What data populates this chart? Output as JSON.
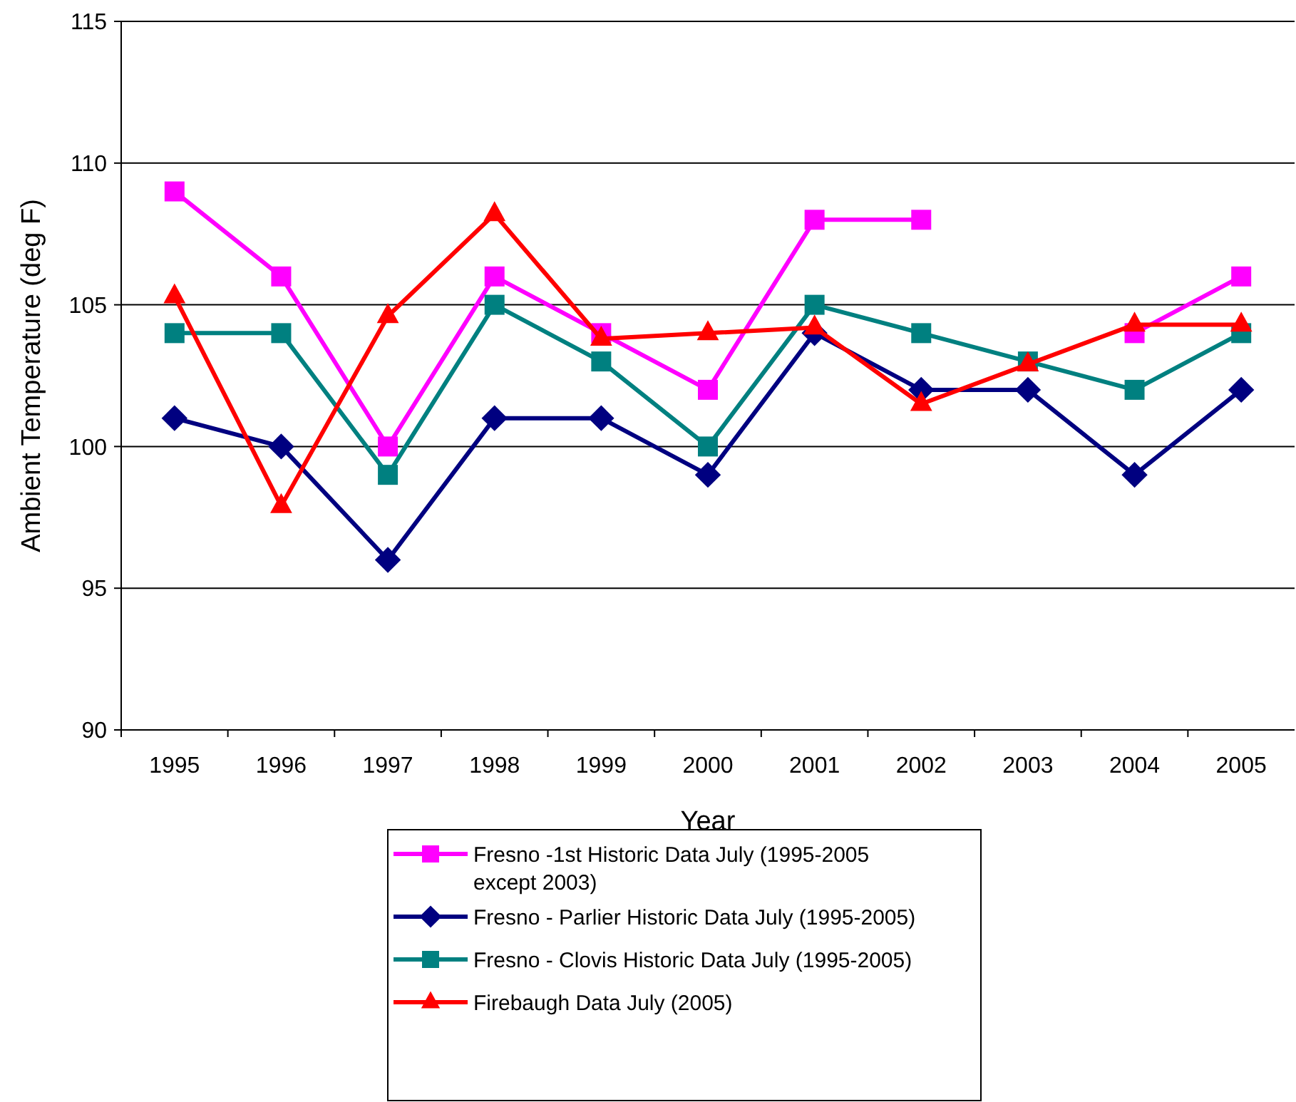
{
  "chart_data": {
    "type": "line",
    "xlabel": "Year",
    "ylabel": "Ambient Temperature (deg F)",
    "categories": [
      "1995",
      "1996",
      "1997",
      "1998",
      "1999",
      "2000",
      "2001",
      "2002",
      "2003",
      "2004",
      "2005"
    ],
    "ylim": [
      90,
      115
    ],
    "yticks": [
      90,
      95,
      100,
      105,
      110,
      115
    ],
    "grid": "y",
    "legend": "bottom",
    "series": [
      {
        "name": "Fresno -1st Historic Data July (1995-2005 except 2003)",
        "color": "#ff00ff",
        "marker": "square",
        "values": [
          109,
          106,
          100,
          106,
          104,
          102,
          108,
          108,
          null,
          104,
          106
        ]
      },
      {
        "name": "Fresno - Parlier Historic Data July (1995-2005)",
        "color": "#000080",
        "marker": "diamond",
        "values": [
          101,
          100,
          96,
          101,
          101,
          99,
          104,
          102,
          102,
          99,
          102
        ]
      },
      {
        "name": "Fresno - Clovis Historic Data July (1995-2005)",
        "color": "#008080",
        "marker": "square",
        "values": [
          104,
          104,
          99,
          105,
          103,
          100,
          105,
          104,
          103,
          102,
          104
        ]
      },
      {
        "name": "Firebaugh Data July (2005)",
        "color": "#ff0000",
        "marker": "triangle",
        "values": [
          105.3,
          97.9,
          104.6,
          108.2,
          103.8,
          104,
          104.2,
          101.5,
          102.9,
          104.3,
          104.3
        ]
      }
    ]
  }
}
